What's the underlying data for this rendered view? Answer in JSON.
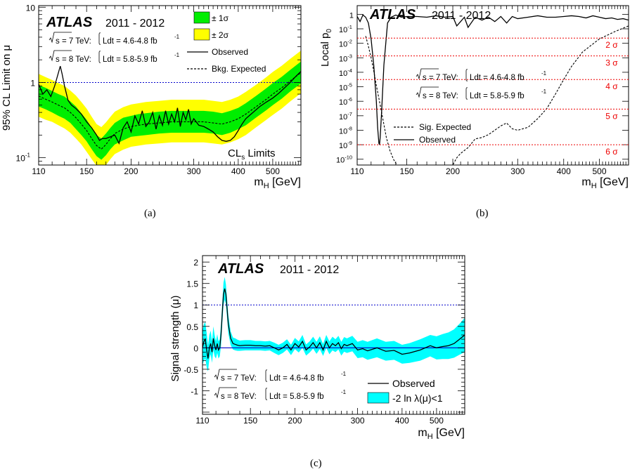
{
  "colors": {
    "band1": "#00ee00",
    "band2": "#ffff00",
    "muband": "#00ffff",
    "ref": "#0000cc",
    "sig": "#ee0000"
  },
  "experiment": "ATLAS",
  "period": "2011 - 2012",
  "lumi": {
    "s7_prefix": "s = 7 TeV:",
    "s7_value": "Ldt = 4.6-4.8 fb",
    "s8_prefix": "s = 8 TeV:",
    "s8_value": "Ldt = 5.8-5.9 fb",
    "sup": "-1"
  },
  "captions": [
    "(a)",
    "(b)",
    "(c)"
  ],
  "chart_data": [
    {
      "type": "line",
      "panel": "a",
      "xlabel_main": "m",
      "xlabel_sub": "H",
      "xlabel_unit": " [GeV]",
      "ylabel": "95% CL Limit on μ",
      "xscale": "log",
      "yscale": "log",
      "xlim": [
        110,
        600
      ],
      "ylim": [
        0.08,
        10.5
      ],
      "xticks": [
        110,
        150,
        200,
        300,
        400,
        500
      ],
      "yticks": [
        {
          "v": 0.1,
          "label": "10",
          "sup": "-1"
        },
        {
          "v": 1,
          "label": "1",
          "sup": ""
        },
        {
          "v": 10,
          "label": "10",
          "sup": ""
        }
      ],
      "legend": {
        "band1": "± 1σ",
        "band2": "± 2σ",
        "observed": "Observed",
        "expected": "Bkg. Expected"
      },
      "cls_main": "CL",
      "cls_sub": "s",
      "cls_rest": " Limits",
      "reference_line": 1,
      "mass": [
        110,
        115,
        120,
        125,
        130,
        135,
        140,
        145,
        150,
        155,
        160,
        165,
        170,
        175,
        180,
        190,
        200,
        210,
        220,
        240,
        260,
        280,
        300,
        320,
        340,
        360,
        380,
        400,
        420,
        450,
        480,
        500,
        530,
        560,
        600
      ],
      "expected": [
        0.66,
        0.6,
        0.55,
        0.5,
        0.46,
        0.4,
        0.34,
        0.28,
        0.23,
        0.18,
        0.145,
        0.13,
        0.15,
        0.18,
        0.21,
        0.24,
        0.26,
        0.27,
        0.28,
        0.29,
        0.3,
        0.3,
        0.3,
        0.3,
        0.29,
        0.28,
        0.3,
        0.33,
        0.38,
        0.48,
        0.6,
        0.7,
        0.85,
        1.05,
        1.35
      ],
      "band1_lo": [
        0.48,
        0.44,
        0.4,
        0.36,
        0.33,
        0.29,
        0.24,
        0.2,
        0.165,
        0.13,
        0.105,
        0.094,
        0.108,
        0.13,
        0.15,
        0.17,
        0.19,
        0.195,
        0.2,
        0.21,
        0.215,
        0.215,
        0.215,
        0.215,
        0.21,
        0.2,
        0.215,
        0.24,
        0.27,
        0.345,
        0.43,
        0.5,
        0.61,
        0.76,
        0.97
      ],
      "band1_hi": [
        0.93,
        0.85,
        0.77,
        0.7,
        0.65,
        0.56,
        0.48,
        0.39,
        0.32,
        0.25,
        0.2,
        0.18,
        0.21,
        0.25,
        0.29,
        0.34,
        0.36,
        0.38,
        0.39,
        0.41,
        0.42,
        0.42,
        0.42,
        0.42,
        0.41,
        0.39,
        0.42,
        0.46,
        0.53,
        0.67,
        0.84,
        0.98,
        1.19,
        1.47,
        1.9
      ],
      "band2_lo": [
        0.35,
        0.32,
        0.3,
        0.27,
        0.245,
        0.215,
        0.18,
        0.15,
        0.12,
        0.096,
        0.078,
        0.07,
        0.08,
        0.096,
        0.112,
        0.128,
        0.14,
        0.145,
        0.15,
        0.155,
        0.16,
        0.16,
        0.16,
        0.16,
        0.155,
        0.15,
        0.16,
        0.176,
        0.2,
        0.256,
        0.32,
        0.37,
        0.45,
        0.56,
        0.72
      ],
      "band2_hi": [
        1.3,
        1.18,
        1.08,
        0.98,
        0.9,
        0.78,
        0.67,
        0.55,
        0.45,
        0.35,
        0.28,
        0.255,
        0.295,
        0.35,
        0.41,
        0.47,
        0.51,
        0.53,
        0.55,
        0.57,
        0.59,
        0.59,
        0.59,
        0.59,
        0.57,
        0.55,
        0.59,
        0.65,
        0.75,
        0.94,
        1.18,
        1.38,
        1.67,
        2.06,
        2.65
      ],
      "observed_m": [
        110,
        113,
        116,
        119,
        122,
        125,
        126.5,
        128,
        130,
        133,
        136,
        140,
        145,
        150,
        155,
        160,
        163,
        166,
        170,
        175,
        180,
        185,
        190,
        195,
        200,
        205,
        210,
        215,
        220,
        225,
        230,
        235,
        240,
        245,
        250,
        255,
        260,
        265,
        270,
        275,
        280,
        285,
        290,
        295,
        300,
        310,
        320,
        330,
        340,
        350,
        360,
        370,
        380,
        390,
        400,
        410,
        420,
        440,
        460,
        480,
        500,
        520,
        540,
        560,
        580,
        600
      ],
      "observed": [
        0.95,
        0.7,
        0.8,
        0.65,
        0.9,
        1.35,
        1.65,
        1.3,
        0.9,
        0.58,
        0.5,
        0.45,
        0.38,
        0.3,
        0.25,
        0.2,
        0.17,
        0.18,
        0.18,
        0.19,
        0.2,
        0.155,
        0.25,
        0.3,
        0.22,
        0.36,
        0.28,
        0.42,
        0.26,
        0.3,
        0.4,
        0.24,
        0.36,
        0.27,
        0.42,
        0.28,
        0.38,
        0.3,
        0.46,
        0.26,
        0.4,
        0.32,
        0.44,
        0.28,
        0.33,
        0.27,
        0.26,
        0.24,
        0.22,
        0.19,
        0.17,
        0.165,
        0.17,
        0.19,
        0.23,
        0.28,
        0.33,
        0.4,
        0.48,
        0.55,
        0.62,
        0.72,
        0.85,
        1.0,
        1.2,
        1.4
      ]
    },
    {
      "type": "line",
      "panel": "b",
      "xlabel_main": "m",
      "xlabel_sub": "H",
      "xlabel_unit": " [GeV]",
      "ylabel_main": "Local p",
      "ylabel_sub": "0",
      "xscale": "log",
      "yscale": "log",
      "xlim": [
        110,
        600
      ],
      "ylim_exp": [
        -10.4,
        0.6
      ],
      "xticks": [
        110,
        150,
        200,
        300,
        400,
        500
      ],
      "yticks": [
        {
          "exp": 0,
          "label": "1"
        },
        {
          "exp": -1
        },
        {
          "exp": -2
        },
        {
          "exp": -3
        },
        {
          "exp": -4
        },
        {
          "exp": -5
        },
        {
          "exp": -6
        },
        {
          "exp": -7
        },
        {
          "exp": -8
        },
        {
          "exp": -9
        },
        {
          "exp": -10
        }
      ],
      "sigma_levels": [
        {
          "exp": -1.64,
          "label": "2 σ"
        },
        {
          "exp": -2.87,
          "label": "3 σ"
        },
        {
          "exp": -4.5,
          "label": "4 σ"
        },
        {
          "exp": -6.54,
          "label": "5 σ"
        },
        {
          "exp": -9.0,
          "label": "6 σ"
        }
      ],
      "legend": {
        "expected": "Sig. Expected",
        "observed": "Observed"
      },
      "observed_m": [
        110,
        112,
        114,
        116,
        118,
        120,
        122,
        124,
        125,
        126,
        126.5,
        127,
        128,
        130,
        133,
        136,
        140,
        145,
        150,
        160,
        170,
        180,
        190,
        200,
        205,
        210,
        215,
        220,
        230,
        240,
        250,
        260,
        270,
        280,
        290,
        300,
        320,
        340,
        360,
        380,
        400,
        420,
        440,
        460,
        480,
        500,
        520,
        540,
        560,
        580,
        600
      ],
      "observed_exp": [
        -0.15,
        -0.5,
        -0.05,
        -0.2,
        -0.6,
        -1.7,
        -3.5,
        -6.0,
        -7.8,
        -8.9,
        -9.0,
        -8.5,
        -7.0,
        -3.5,
        -0.6,
        -0.2,
        -0.05,
        -0.2,
        -0.15,
        -0.15,
        -0.2,
        -0.1,
        -0.2,
        -0.15,
        -0.8,
        -0.5,
        -0.2,
        -0.9,
        -0.2,
        -0.4,
        -0.2,
        -0.5,
        -0.15,
        -0.6,
        -0.15,
        -0.3,
        -0.2,
        -0.1,
        -0.2,
        -0.2,
        -0.15,
        -0.1,
        -0.15,
        -0.25,
        -0.1,
        -0.2,
        -0.3,
        -0.25,
        -0.35,
        -0.3,
        -0.4
      ],
      "expected_m": [
        116,
        118,
        120,
        122,
        124,
        126,
        128,
        130,
        132,
        135,
        138,
        141,
        200,
        205,
        210,
        220,
        230,
        240,
        250,
        260,
        270,
        280,
        290,
        300,
        320,
        340,
        360,
        380,
        400,
        420,
        450,
        500,
        550,
        600
      ],
      "expected_exp": [
        -1.5,
        -2.2,
        -3.0,
        -3.9,
        -4.9,
        -5.8,
        -6.7,
        -7.6,
        -8.5,
        -9.4,
        -10.0,
        -10.4,
        -10.4,
        -9.9,
        -9.6,
        -9.2,
        -8.6,
        -8.5,
        -8.3,
        -8.0,
        -7.7,
        -7.5,
        -7.9,
        -8.0,
        -7.8,
        -7.2,
        -6.5,
        -5.5,
        -4.5,
        -3.6,
        -2.6,
        -1.7,
        -1.2,
        -0.8
      ]
    },
    {
      "type": "line",
      "panel": "c",
      "xlabel_main": "m",
      "xlabel_sub": "H",
      "xlabel_unit": " [GeV]",
      "ylabel": "Signal strength (μ)",
      "xscale": "log",
      "xlim": [
        110,
        600
      ],
      "ylim": [
        -1.55,
        2.15
      ],
      "xticks": [
        110,
        150,
        200,
        300,
        400,
        500
      ],
      "yticks": [
        -1,
        -0.5,
        0,
        0.5,
        1,
        1.5,
        2
      ],
      "reference_lines": [
        1,
        0
      ],
      "legend": {
        "observed": "Observed",
        "band": "-2 ln λ(μ)<1"
      },
      "mass": [
        110,
        111,
        112,
        113,
        114,
        115,
        116,
        117,
        118,
        119,
        120,
        121,
        122,
        123,
        124,
        125,
        126,
        127,
        128,
        129,
        130,
        132,
        134,
        136,
        138,
        140,
        145,
        150,
        155,
        160,
        165,
        170,
        175,
        180,
        185,
        190,
        195,
        200,
        205,
        210,
        215,
        220,
        225,
        230,
        235,
        240,
        245,
        250,
        255,
        260,
        265,
        270,
        275,
        280,
        290,
        300,
        310,
        320,
        340,
        360,
        380,
        400,
        420,
        450,
        480,
        500,
        520,
        540,
        560,
        580,
        600
      ],
      "mu": [
        0.0,
        0.15,
        0.2,
        -0.05,
        -0.25,
        0.0,
        0.1,
        -0.1,
        0.22,
        0.05,
        -0.05,
        0.1,
        -0.05,
        0.0,
        0.3,
        0.8,
        1.25,
        1.38,
        1.25,
        0.9,
        0.55,
        0.22,
        0.1,
        0.08,
        0.06,
        0.05,
        0.06,
        0.06,
        0.05,
        0.05,
        0.04,
        0.05,
        0.0,
        -0.05,
        0.0,
        0.08,
        -0.05,
        0.1,
        0.02,
        0.15,
        -0.05,
        0.02,
        0.12,
        0.0,
        0.12,
        -0.05,
        0.15,
        0.0,
        0.1,
        0.05,
        0.12,
        -0.02,
        0.08,
        0.05,
        0.1,
        -0.05,
        -0.02,
        -0.07,
        0.0,
        -0.08,
        -0.06,
        -0.15,
        -0.12,
        -0.05,
        0.05,
        0.0,
        0.03,
        0.05,
        0.1,
        0.2,
        0.3
      ],
      "mu_lo": [
        -0.4,
        -0.3,
        -0.25,
        -0.45,
        -0.55,
        -0.25,
        -0.15,
        -0.35,
        -0.05,
        -0.2,
        -0.25,
        -0.12,
        -0.25,
        -0.2,
        0.05,
        0.55,
        1.0,
        1.12,
        1.02,
        0.68,
        0.34,
        0.06,
        -0.04,
        -0.06,
        -0.07,
        -0.07,
        -0.06,
        -0.06,
        -0.06,
        -0.06,
        -0.07,
        -0.06,
        -0.12,
        -0.17,
        -0.12,
        -0.04,
        -0.17,
        -0.03,
        -0.11,
        0.0,
        -0.18,
        -0.11,
        -0.02,
        -0.14,
        -0.03,
        -0.19,
        0.0,
        -0.15,
        -0.06,
        -0.1,
        -0.04,
        -0.18,
        -0.09,
        -0.12,
        -0.08,
        -0.24,
        -0.22,
        -0.28,
        -0.22,
        -0.3,
        -0.28,
        -0.37,
        -0.35,
        -0.3,
        -0.2,
        -0.27,
        -0.26,
        -0.26,
        -0.23,
        -0.16,
        -0.1
      ],
      "mu_hi": [
        0.4,
        0.55,
        0.6,
        0.35,
        0.05,
        0.3,
        0.4,
        0.15,
        0.5,
        0.3,
        0.15,
        0.32,
        0.15,
        0.2,
        0.55,
        1.05,
        1.52,
        1.65,
        1.48,
        1.12,
        0.76,
        0.38,
        0.24,
        0.22,
        0.19,
        0.17,
        0.18,
        0.18,
        0.16,
        0.16,
        0.15,
        0.16,
        0.12,
        0.07,
        0.12,
        0.2,
        0.07,
        0.23,
        0.15,
        0.3,
        0.08,
        0.15,
        0.26,
        0.14,
        0.27,
        0.09,
        0.3,
        0.15,
        0.26,
        0.2,
        0.28,
        0.14,
        0.25,
        0.22,
        0.28,
        0.14,
        0.18,
        0.14,
        0.22,
        0.14,
        0.16,
        0.07,
        0.11,
        0.2,
        0.3,
        0.27,
        0.32,
        0.36,
        0.43,
        0.56,
        0.7
      ]
    }
  ]
}
